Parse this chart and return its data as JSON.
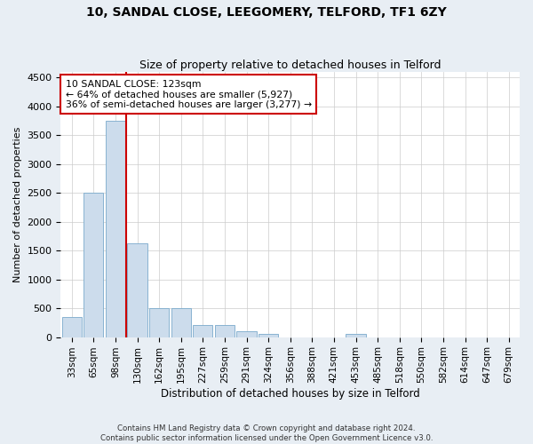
{
  "title1": "10, SANDAL CLOSE, LEEGOMERY, TELFORD, TF1 6ZY",
  "title2": "Size of property relative to detached houses in Telford",
  "xlabel": "Distribution of detached houses by size in Telford",
  "ylabel": "Number of detached properties",
  "footnote1": "Contains HM Land Registry data © Crown copyright and database right 2024.",
  "footnote2": "Contains public sector information licensed under the Open Government Licence v3.0.",
  "annotation_line1": "10 SANDAL CLOSE: 123sqm",
  "annotation_line2": "← 64% of detached houses are smaller (5,927)",
  "annotation_line3": "36% of semi-detached houses are larger (3,277) →",
  "bins": [
    "33sqm",
    "65sqm",
    "98sqm",
    "130sqm",
    "162sqm",
    "195sqm",
    "227sqm",
    "259sqm",
    "291sqm",
    "324sqm",
    "356sqm",
    "388sqm",
    "421sqm",
    "453sqm",
    "485sqm",
    "518sqm",
    "550sqm",
    "582sqm",
    "614sqm",
    "647sqm",
    "679sqm"
  ],
  "values": [
    350,
    2500,
    3750,
    1625,
    500,
    500,
    210,
    210,
    100,
    55,
    0,
    0,
    0,
    55,
    0,
    0,
    0,
    0,
    0,
    0,
    0
  ],
  "bar_color": "#ccdcec",
  "bar_edge_color": "#7aaacc",
  "vline_color": "#cc0000",
  "vline_x": 2.5,
  "annotation_box_color": "#cc0000",
  "ylim": [
    0,
    4600
  ],
  "yticks": [
    0,
    500,
    1000,
    1500,
    2000,
    2500,
    3000,
    3500,
    4000,
    4500
  ],
  "background_color": "#e8eef4",
  "plot_bg_color": "#ffffff",
  "grid_color": "#cccccc"
}
